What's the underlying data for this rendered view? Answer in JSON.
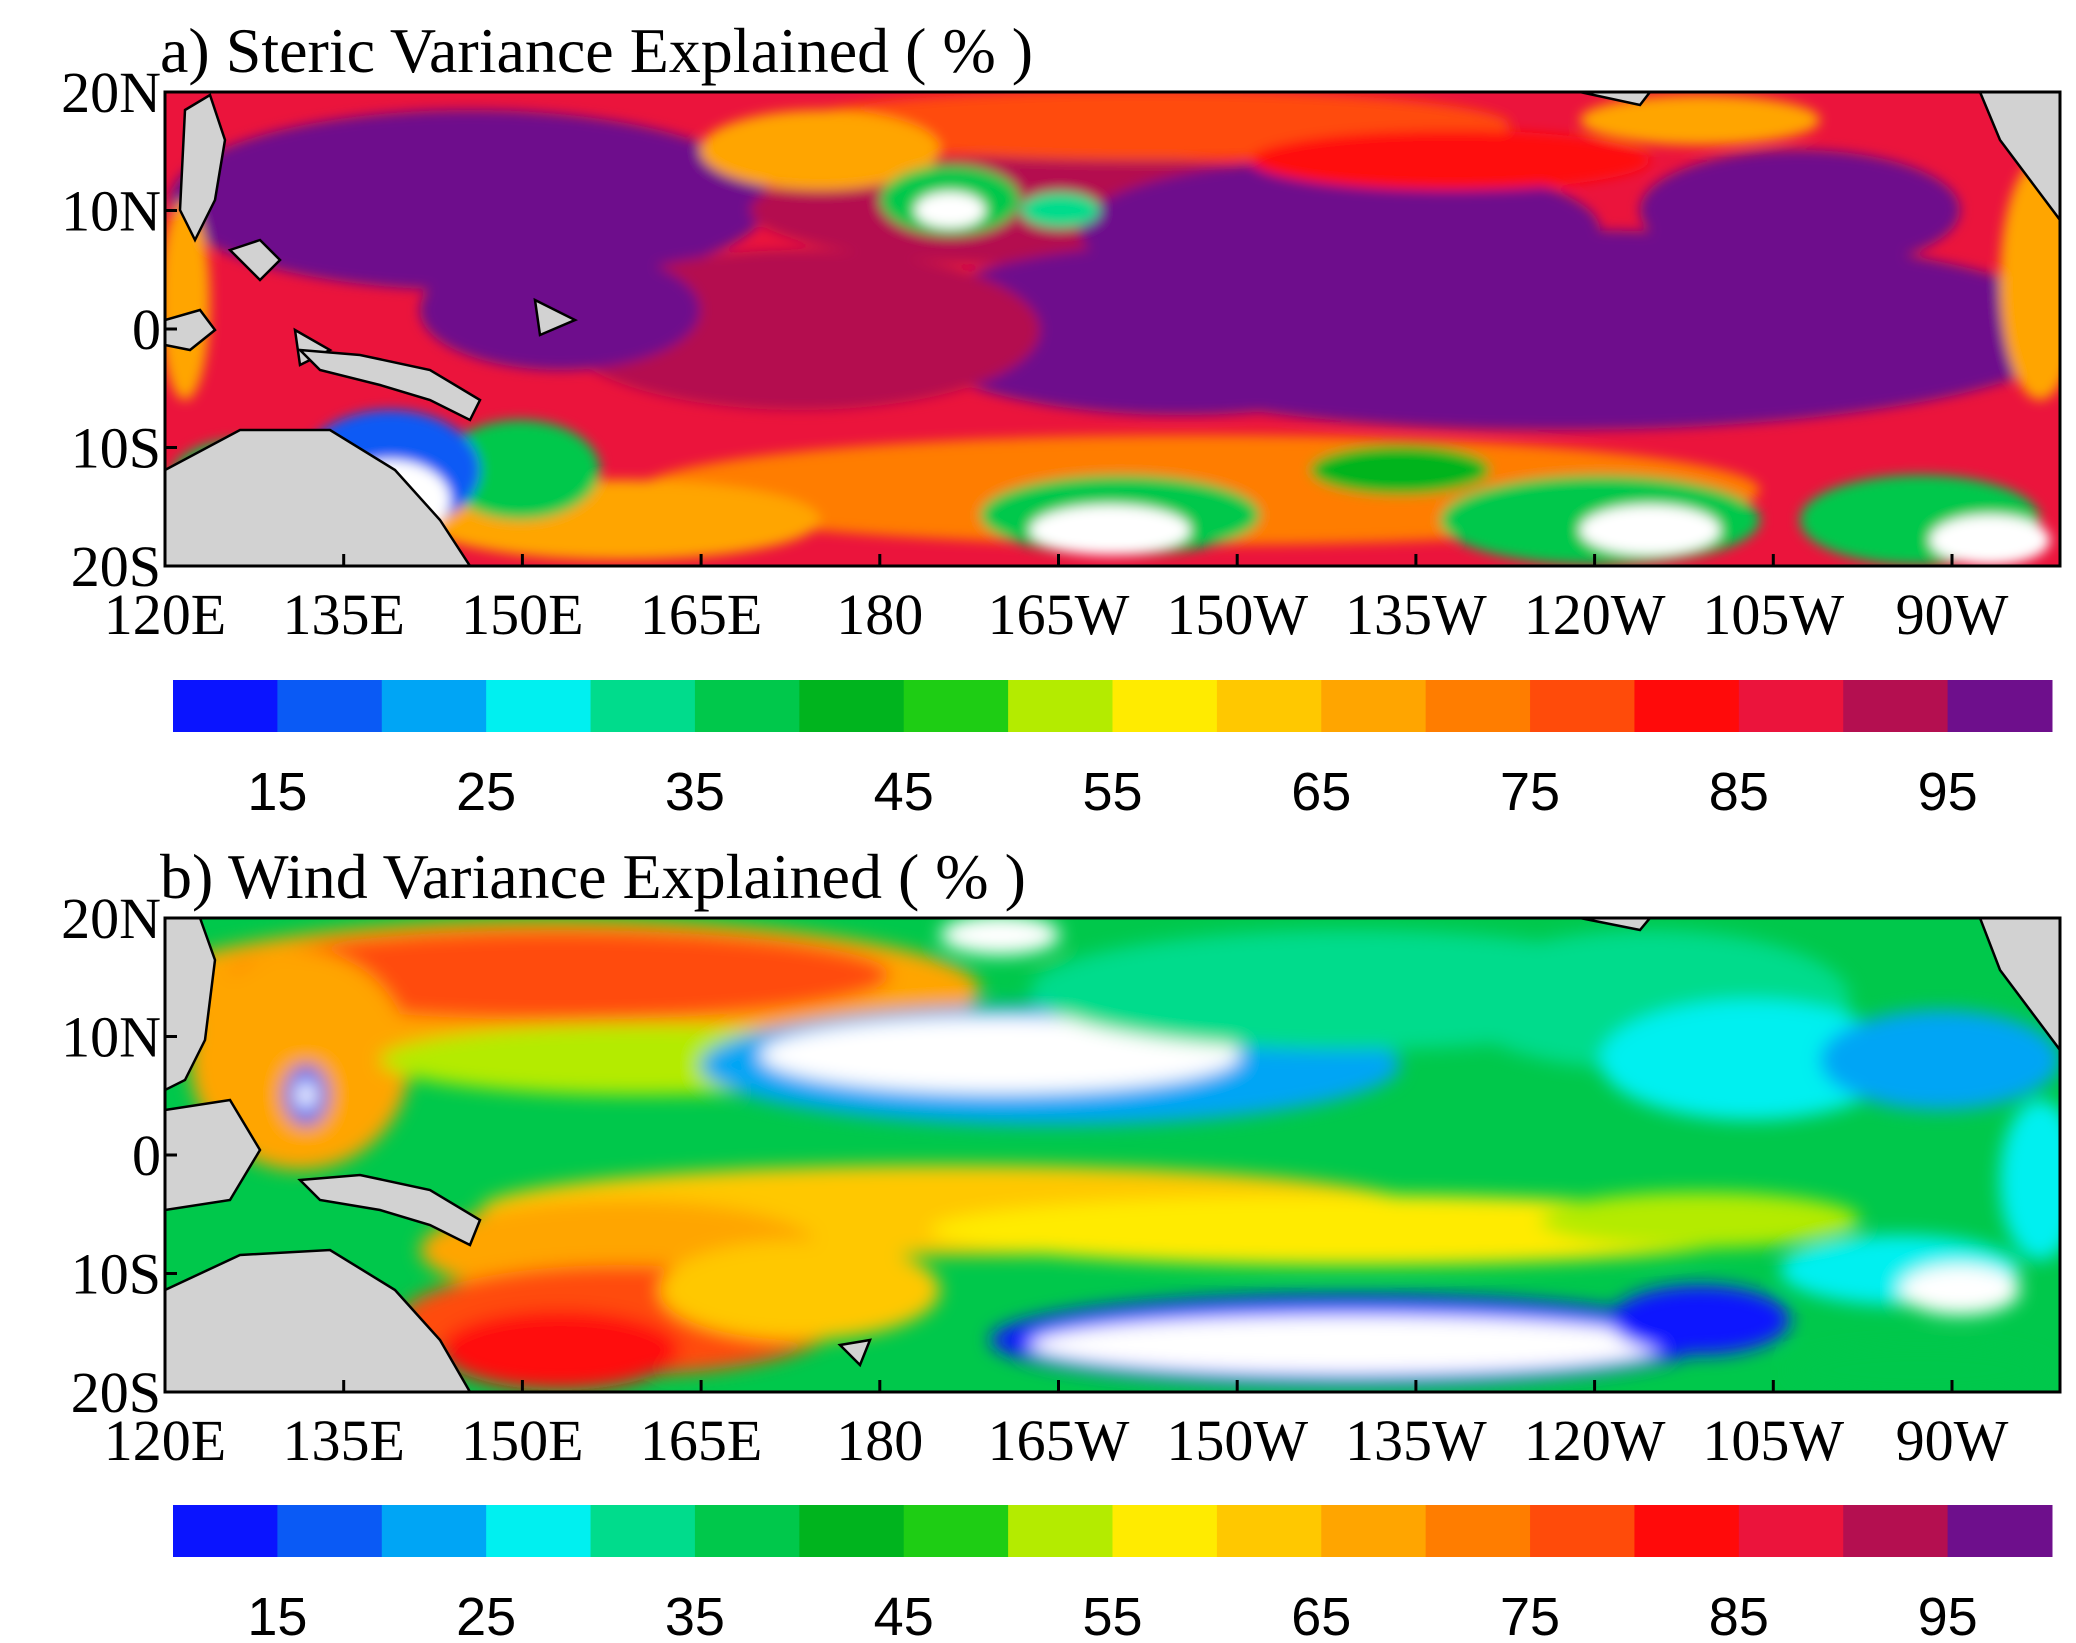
{
  "panels": [
    {
      "key": "a",
      "title": "a) Steric Variance Explained ( % )",
      "variable": "steric",
      "lat_ticks": [
        "20N",
        "10N",
        "0",
        "10S",
        "20S"
      ],
      "lon_ticks": [
        "120E",
        "135E",
        "150E",
        "165E",
        "180",
        "165W",
        "150W",
        "135W",
        "120W",
        "105W",
        "90W"
      ]
    },
    {
      "key": "b",
      "title": "b) Wind Variance Explained ( % )",
      "variable": "wind",
      "lat_ticks": [
        "20N",
        "10N",
        "0",
        "10S",
        "20S"
      ],
      "lon_ticks": [
        "120E",
        "135E",
        "150E",
        "165E",
        "180",
        "165W",
        "150W",
        "135W",
        "120W",
        "105W",
        "90W"
      ]
    }
  ],
  "colorbar": {
    "levels": [
      10,
      15,
      20,
      25,
      30,
      35,
      40,
      45,
      50,
      55,
      60,
      65,
      70,
      75,
      80,
      85,
      90,
      95
    ],
    "colors": [
      "#0a14ff",
      "#0a5af5",
      "#00a5f5",
      "#00f0f0",
      "#00dc8c",
      "#00c84b",
      "#00b41e",
      "#1ecd14",
      "#b4eb00",
      "#ffeb00",
      "#ffc800",
      "#ffa500",
      "#ff7d00",
      "#ff4b0a",
      "#ff0a0a",
      "#eb143c",
      "#b40f50",
      "#6e0f8c"
    ],
    "labels": [
      "15",
      "25",
      "35",
      "45",
      "55",
      "65",
      "75",
      "85",
      "95"
    ]
  },
  "map": {
    "lon_range": [
      120,
      280
    ],
    "lat_range": [
      -20,
      20
    ],
    "land_color": "#d2d2d2",
    "missing_color": "#ffffff"
  }
}
